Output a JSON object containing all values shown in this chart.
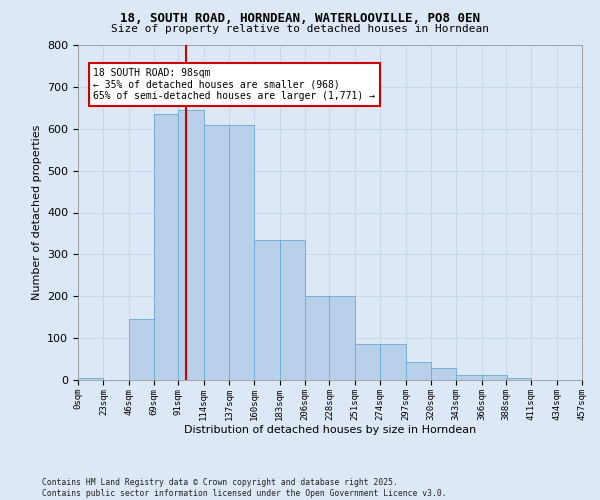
{
  "title1": "18, SOUTH ROAD, HORNDEAN, WATERLOOVILLE, PO8 0EN",
  "title2": "Size of property relative to detached houses in Horndean",
  "xlabel": "Distribution of detached houses by size in Horndean",
  "ylabel": "Number of detached properties",
  "bar_heights": [
    5,
    0,
    145,
    635,
    645,
    610,
    610,
    335,
    335,
    200,
    200,
    85,
    85,
    42,
    28,
    12,
    12,
    5,
    0,
    0
  ],
  "bar_lefts": [
    0,
    23,
    46,
    69,
    91,
    114,
    137,
    160,
    183,
    206,
    228,
    251,
    274,
    297,
    320,
    343,
    366,
    388,
    411,
    434
  ],
  "bin_width": 23,
  "tick_positions": [
    0,
    23,
    46,
    69,
    91,
    114,
    137,
    160,
    183,
    206,
    228,
    251,
    274,
    297,
    320,
    343,
    366,
    388,
    411,
    434,
    457
  ],
  "tick_labels": [
    "0sqm",
    "23sqm",
    "46sqm",
    "69sqm",
    "91sqm",
    "114sqm",
    "137sqm",
    "160sqm",
    "183sqm",
    "206sqm",
    "228sqm",
    "251sqm",
    "274sqm",
    "297sqm",
    "320sqm",
    "343sqm",
    "366sqm",
    "388sqm",
    "411sqm",
    "434sqm",
    "457sqm"
  ],
  "bar_color": "#b8d0ea",
  "bar_edgecolor": "#6aaad4",
  "vline_x": 98,
  "vline_color": "#cc0000",
  "annotation_text": "18 SOUTH ROAD: 98sqm\n← 35% of detached houses are smaller (968)\n65% of semi-detached houses are larger (1,771) →",
  "annotation_box_facecolor": "#ffffff",
  "annotation_box_edgecolor": "#cc0000",
  "grid_color": "#c8d8ea",
  "background_color": "#dce8f5",
  "footer": "Contains HM Land Registry data © Crown copyright and database right 2025.\nContains public sector information licensed under the Open Government Licence v3.0.",
  "ylim": [
    0,
    800
  ],
  "xlim_min": 0,
  "xlim_max": 457,
  "yticks": [
    0,
    100,
    200,
    300,
    400,
    500,
    600,
    700,
    800
  ]
}
